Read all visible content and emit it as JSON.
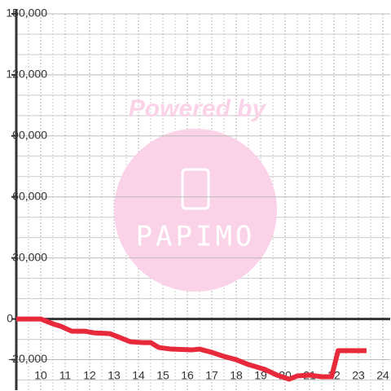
{
  "chart_data": {
    "type": "line",
    "x": [
      9,
      10,
      10.5,
      10.83,
      11.27,
      11.8,
      12.17,
      12.83,
      13.17,
      13.67,
      14.17,
      14.5,
      14.83,
      15.33,
      16.17,
      16.5,
      17,
      17.5,
      18,
      18.5,
      19.17,
      19.67,
      20.17,
      20.5,
      21,
      21.5,
      21.9,
      22.17,
      23.33
    ],
    "series": [
      {
        "color": "#e8293b",
        "values": [
          0,
          0,
          -2400,
          -3600,
          -6000,
          -6000,
          -6800,
          -7200,
          -8800,
          -11200,
          -11600,
          -11600,
          -14000,
          -14800,
          -15200,
          -14800,
          -16400,
          -18400,
          -20000,
          -22400,
          -24800,
          -27600,
          -29600,
          -28000,
          -27600,
          -28400,
          -28400,
          -15600,
          -15600
        ]
      }
    ],
    "xlim": [
      9,
      24.3
    ],
    "xticks": [
      10,
      11,
      12,
      13,
      14,
      15,
      16,
      17,
      18,
      19,
      20,
      21,
      22,
      23,
      24
    ],
    "minor_xticks": [
      9.5,
      10.5,
      11.5,
      12.5,
      13.5,
      14.5,
      15.5,
      16.5,
      17.5,
      18.5,
      19.5,
      20.5,
      21.5,
      22.5,
      23.5
    ],
    "ylim": [
      -35000,
      150000
    ],
    "yticks": [
      {
        "value": -20000,
        "label": "-20,000"
      },
      0,
      {
        "value": 30000,
        "label": "30,000"
      },
      {
        "value": 60000,
        "label": "60,000"
      },
      {
        "value": 90000,
        "label": "90,000"
      },
      {
        "value": 120000,
        "label": "120,000"
      },
      {
        "value": 150000,
        "label": "150,000"
      }
    ],
    "minor_yticks": [
      -30000,
      -10000,
      10000,
      20000,
      40000,
      50000,
      70000,
      80000,
      100000,
      110000,
      130000,
      140000
    ],
    "grid": true
  },
  "watermark": {
    "text": "Powered by",
    "brand": "PAPIMO"
  }
}
